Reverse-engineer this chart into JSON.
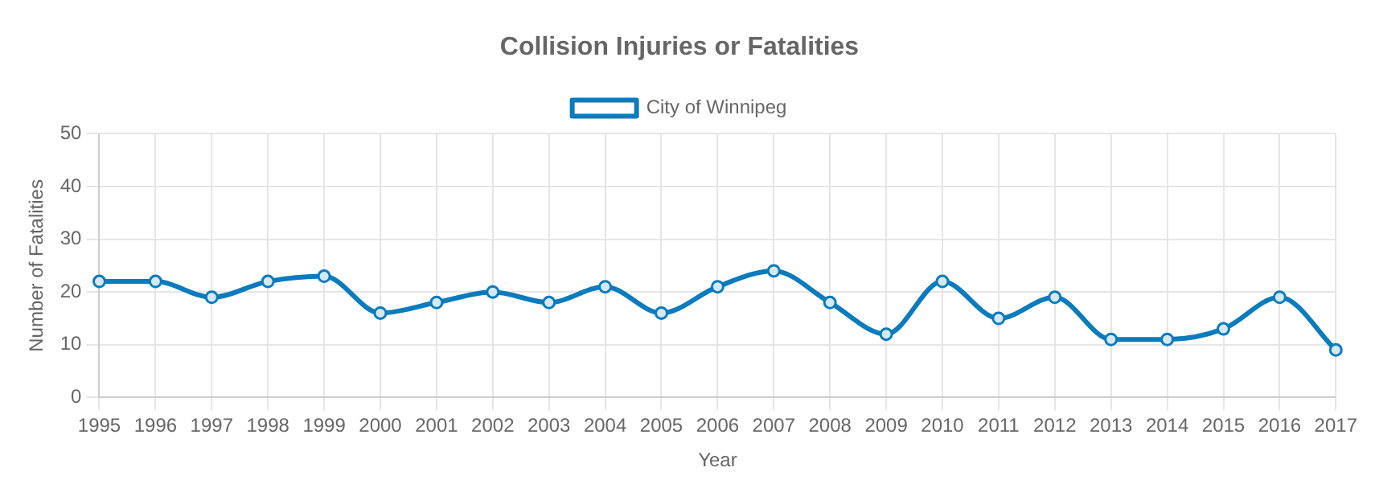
{
  "chart_data": {
    "type": "line",
    "title": "Collision Injuries or Fatalities",
    "xlabel": "Year",
    "ylabel": "Number of Fatalities",
    "categories": [
      "1995",
      "1996",
      "1997",
      "1998",
      "1999",
      "2000",
      "2001",
      "2002",
      "2003",
      "2004",
      "2005",
      "2006",
      "2007",
      "2008",
      "2009",
      "2010",
      "2011",
      "2012",
      "2013",
      "2014",
      "2015",
      "2016",
      "2017"
    ],
    "series": [
      {
        "name": "City of Winnipeg",
        "color": "#0a7bbd",
        "values": [
          22,
          22,
          19,
          22,
          23,
          16,
          18,
          20,
          18,
          21,
          16,
          21,
          24,
          18,
          12,
          22,
          15,
          19,
          11,
          11,
          13,
          19,
          9
        ]
      }
    ],
    "ylim": [
      0,
      50
    ],
    "yticks": [
      0,
      10,
      20,
      30,
      40,
      50
    ],
    "grid": true,
    "legend": "top",
    "marker": "circle",
    "line_style": "solid"
  }
}
